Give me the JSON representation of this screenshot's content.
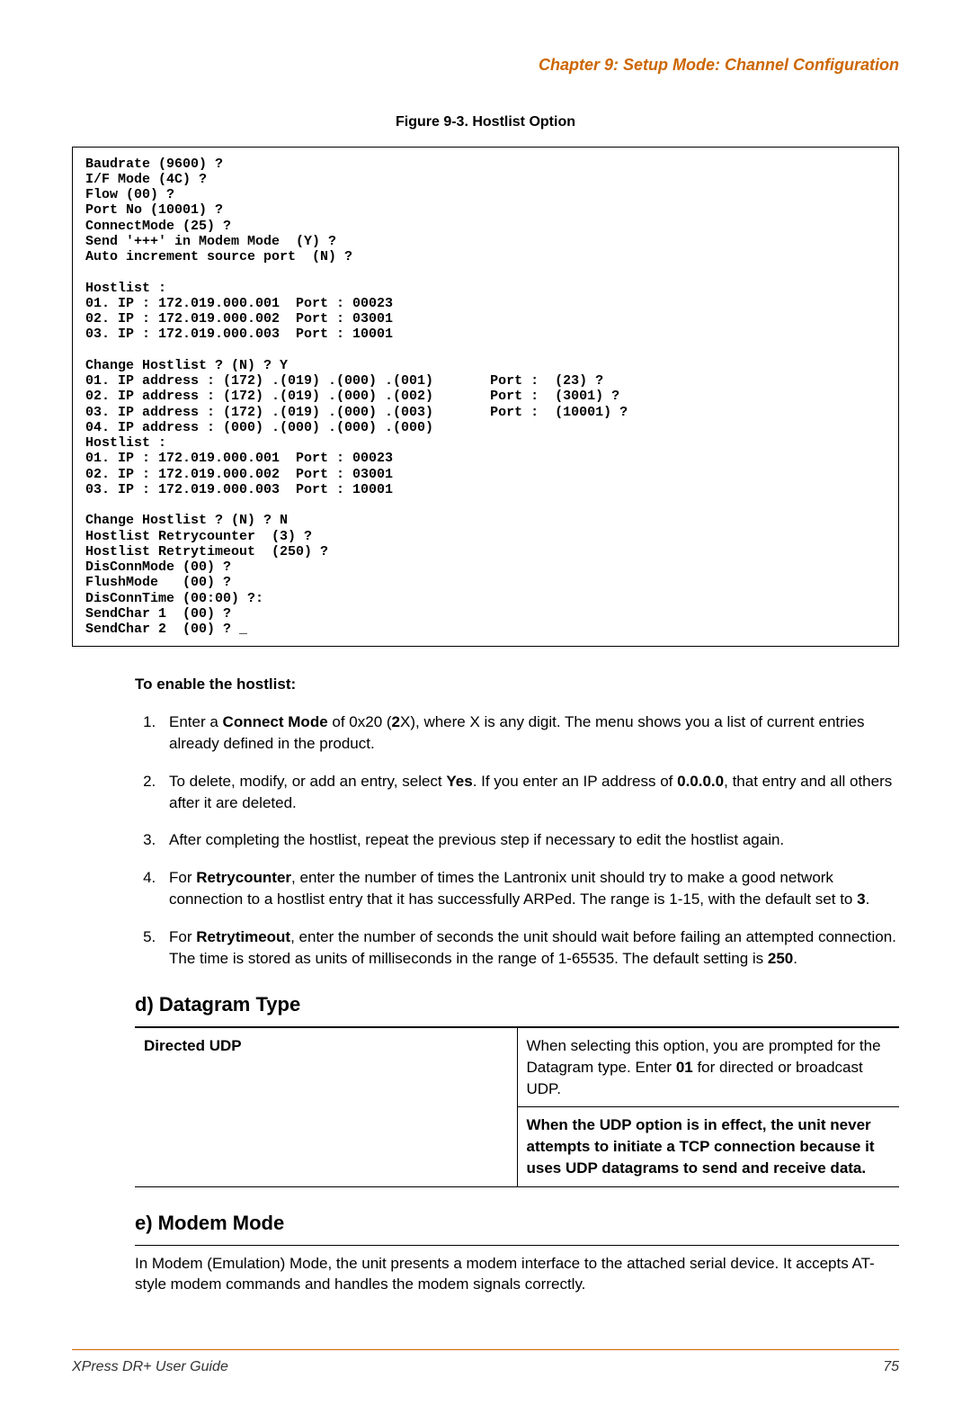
{
  "header": {
    "chapter": "Chapter 9: Setup Mode: Channel Configuration"
  },
  "figure": {
    "caption": "Figure 9-3. Hostlist Option",
    "terminal": "Baudrate (9600) ?\nI/F Mode (4C) ?\nFlow (00) ?\nPort No (10001) ?\nConnectMode (25) ?\nSend '+++' in Modem Mode  (Y) ?\nAuto increment source port  (N) ?\n\nHostlist :\n01. IP : 172.019.000.001  Port : 00023\n02. IP : 172.019.000.002  Port : 03001\n03. IP : 172.019.000.003  Port : 10001\n\nChange Hostlist ? (N) ? Y\n01. IP address : (172) .(019) .(000) .(001)       Port :  (23) ?\n02. IP address : (172) .(019) .(000) .(002)       Port :  (3001) ?\n03. IP address : (172) .(019) .(000) .(003)       Port :  (10001) ?\n04. IP address : (000) .(000) .(000) .(000)\nHostlist :\n01. IP : 172.019.000.001  Port : 00023\n02. IP : 172.019.000.002  Port : 03001\n03. IP : 172.019.000.003  Port : 10001\n\nChange Hostlist ? (N) ? N\nHostlist Retrycounter  (3) ?\nHostlist Retrytimeout  (250) ?\nDisConnMode (00) ?\nFlushMode   (00) ?\nDisConnTime (00:00) ?:\nSendChar 1  (00) ?\nSendChar 2  (00) ? _"
  },
  "enable": {
    "heading": "To enable the hostlist:",
    "items": {
      "1": {
        "pre": "Enter a ",
        "b1": "Connect Mode",
        "mid1": " of 0x20 (",
        "b2": "2",
        "mid2": "X), where X is any digit. The menu shows you a list of current entries already defined in the product."
      },
      "2": {
        "pre": "To delete, modify, or add an entry, select ",
        "b1": "Yes",
        "mid1": ". If you enter an IP address of ",
        "b2": "0.0.0.0",
        "mid2": ", that entry and all others after it are deleted."
      },
      "3": {
        "pre": "After completing the hostlist, repeat the previous step if necessary to edit the hostlist again."
      },
      "4": {
        "pre": "For ",
        "b1": "Retrycounter",
        "mid1": ", enter the number of times the Lantronix unit should try to make a good network connection to a hostlist entry that it has successfully ARPed. The range is 1-15, with the default set to ",
        "b2": "3",
        "mid2": "."
      },
      "5": {
        "pre": "For ",
        "b1": "Retrytimeout",
        "mid1": ", enter the number of seconds the unit should wait before failing an attempted connection. The time is stored as units of milliseconds in the range of 1-65535. The default setting is ",
        "b2": "250",
        "mid2": "."
      }
    }
  },
  "sections": {
    "d": {
      "heading": "d) Datagram Type",
      "table": {
        "label": "Directed UDP",
        "cell1_pre": "When selecting this option, you are prompted for the Datagram type. Enter ",
        "cell1_b": "01",
        "cell1_post": " for directed or broadcast UDP.",
        "cell2": "When the UDP option is in effect, the unit never attempts to initiate a TCP connection because it uses UDP datagrams to send and receive data."
      }
    },
    "e": {
      "heading": "e) Modem Mode",
      "body": "In Modem (Emulation) Mode, the unit presents a modem interface to the attached serial device. It accepts AT-style modem commands and handles the modem signals correctly."
    }
  },
  "footer": {
    "title": "XPress DR+ User Guide",
    "page": "75"
  },
  "colors": {
    "accent": "#cc6600",
    "text": "#000000",
    "background": "#ffffff"
  }
}
